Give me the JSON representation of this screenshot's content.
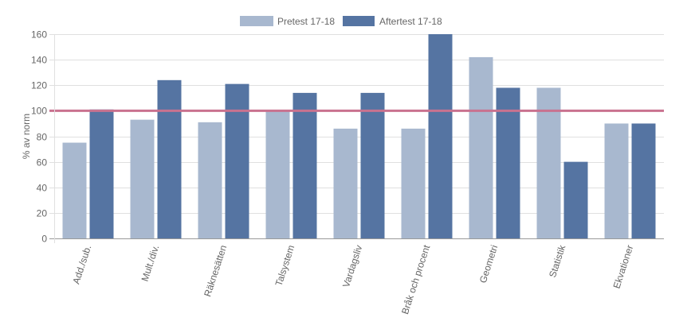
{
  "chart_data": {
    "type": "bar",
    "categories": [
      "Add./sub.",
      "Mult./div.",
      "Räknesätten",
      "Talsystem",
      "Vardagsliv",
      "Bråk och procent",
      "Geometri",
      "Statistik",
      "Ekvationer"
    ],
    "series": [
      {
        "name": "Pretest 17-18",
        "color": "#a8b8cf",
        "values": [
          75,
          93,
          91,
          100,
          86,
          86,
          142,
          118,
          90
        ]
      },
      {
        "name": "Aftertest 17-18",
        "color": "#5574a2",
        "values": [
          101,
          124,
          121,
          114,
          114,
          160,
          118,
          60,
          90
        ]
      }
    ],
    "reference_line": {
      "value": 100,
      "color": "#c9728f"
    },
    "ylabel": "% av norm",
    "ylim": [
      0,
      160
    ],
    "yticks": [
      0,
      20,
      40,
      60,
      80,
      100,
      120,
      140,
      160
    ],
    "grid": true,
    "legend_position": "top-center",
    "title": ""
  }
}
